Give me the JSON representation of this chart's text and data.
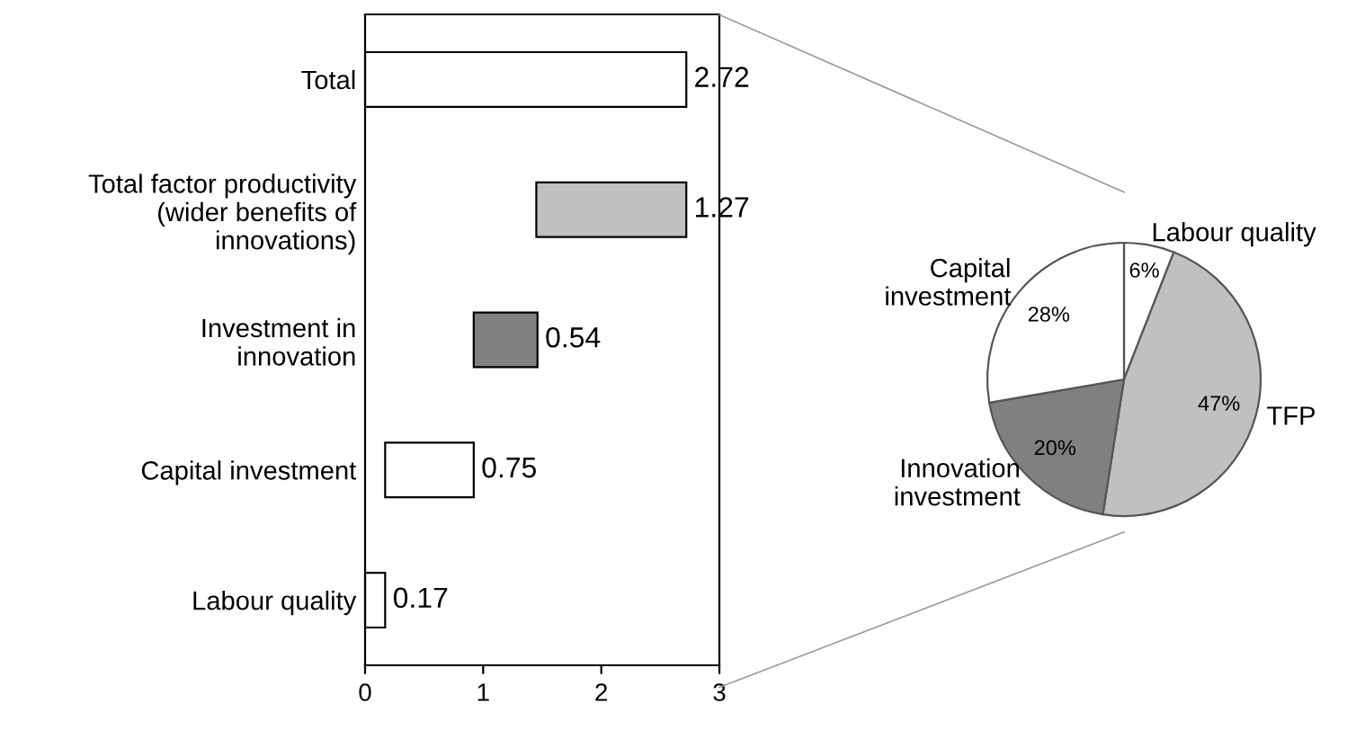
{
  "chart_data": [
    {
      "type": "bar",
      "orientation": "horizontal",
      "categories": [
        "Total",
        "Total factor productivity\n(wider benefits of\ninnovations)",
        "Investment in\ninnovation",
        "Capital investment",
        "Labour quality"
      ],
      "values": [
        2.72,
        1.27,
        0.54,
        0.75,
        0.17
      ],
      "base": [
        0,
        1.45,
        0.92,
        0.17,
        0
      ],
      "colors": [
        "#ffffff",
        "#c0c0c0",
        "#808080",
        "#ffffff",
        "#ffffff"
      ],
      "data_labels": true,
      "xlim": [
        0,
        3
      ],
      "xticks": [
        0,
        1,
        2,
        3
      ],
      "grid": false,
      "legend": false
    },
    {
      "type": "pie",
      "categories": [
        "Labour quality",
        "TFP",
        "Innovation\ninvestment",
        "Capital\ninvestment"
      ],
      "values": [
        6,
        47,
        20,
        28
      ],
      "value_labels": [
        "6%",
        "47%",
        "20%",
        "28%"
      ],
      "colors": [
        "#ffffff",
        "#c0c0c0",
        "#808080",
        "#ffffff"
      ],
      "legend": false
    }
  ]
}
